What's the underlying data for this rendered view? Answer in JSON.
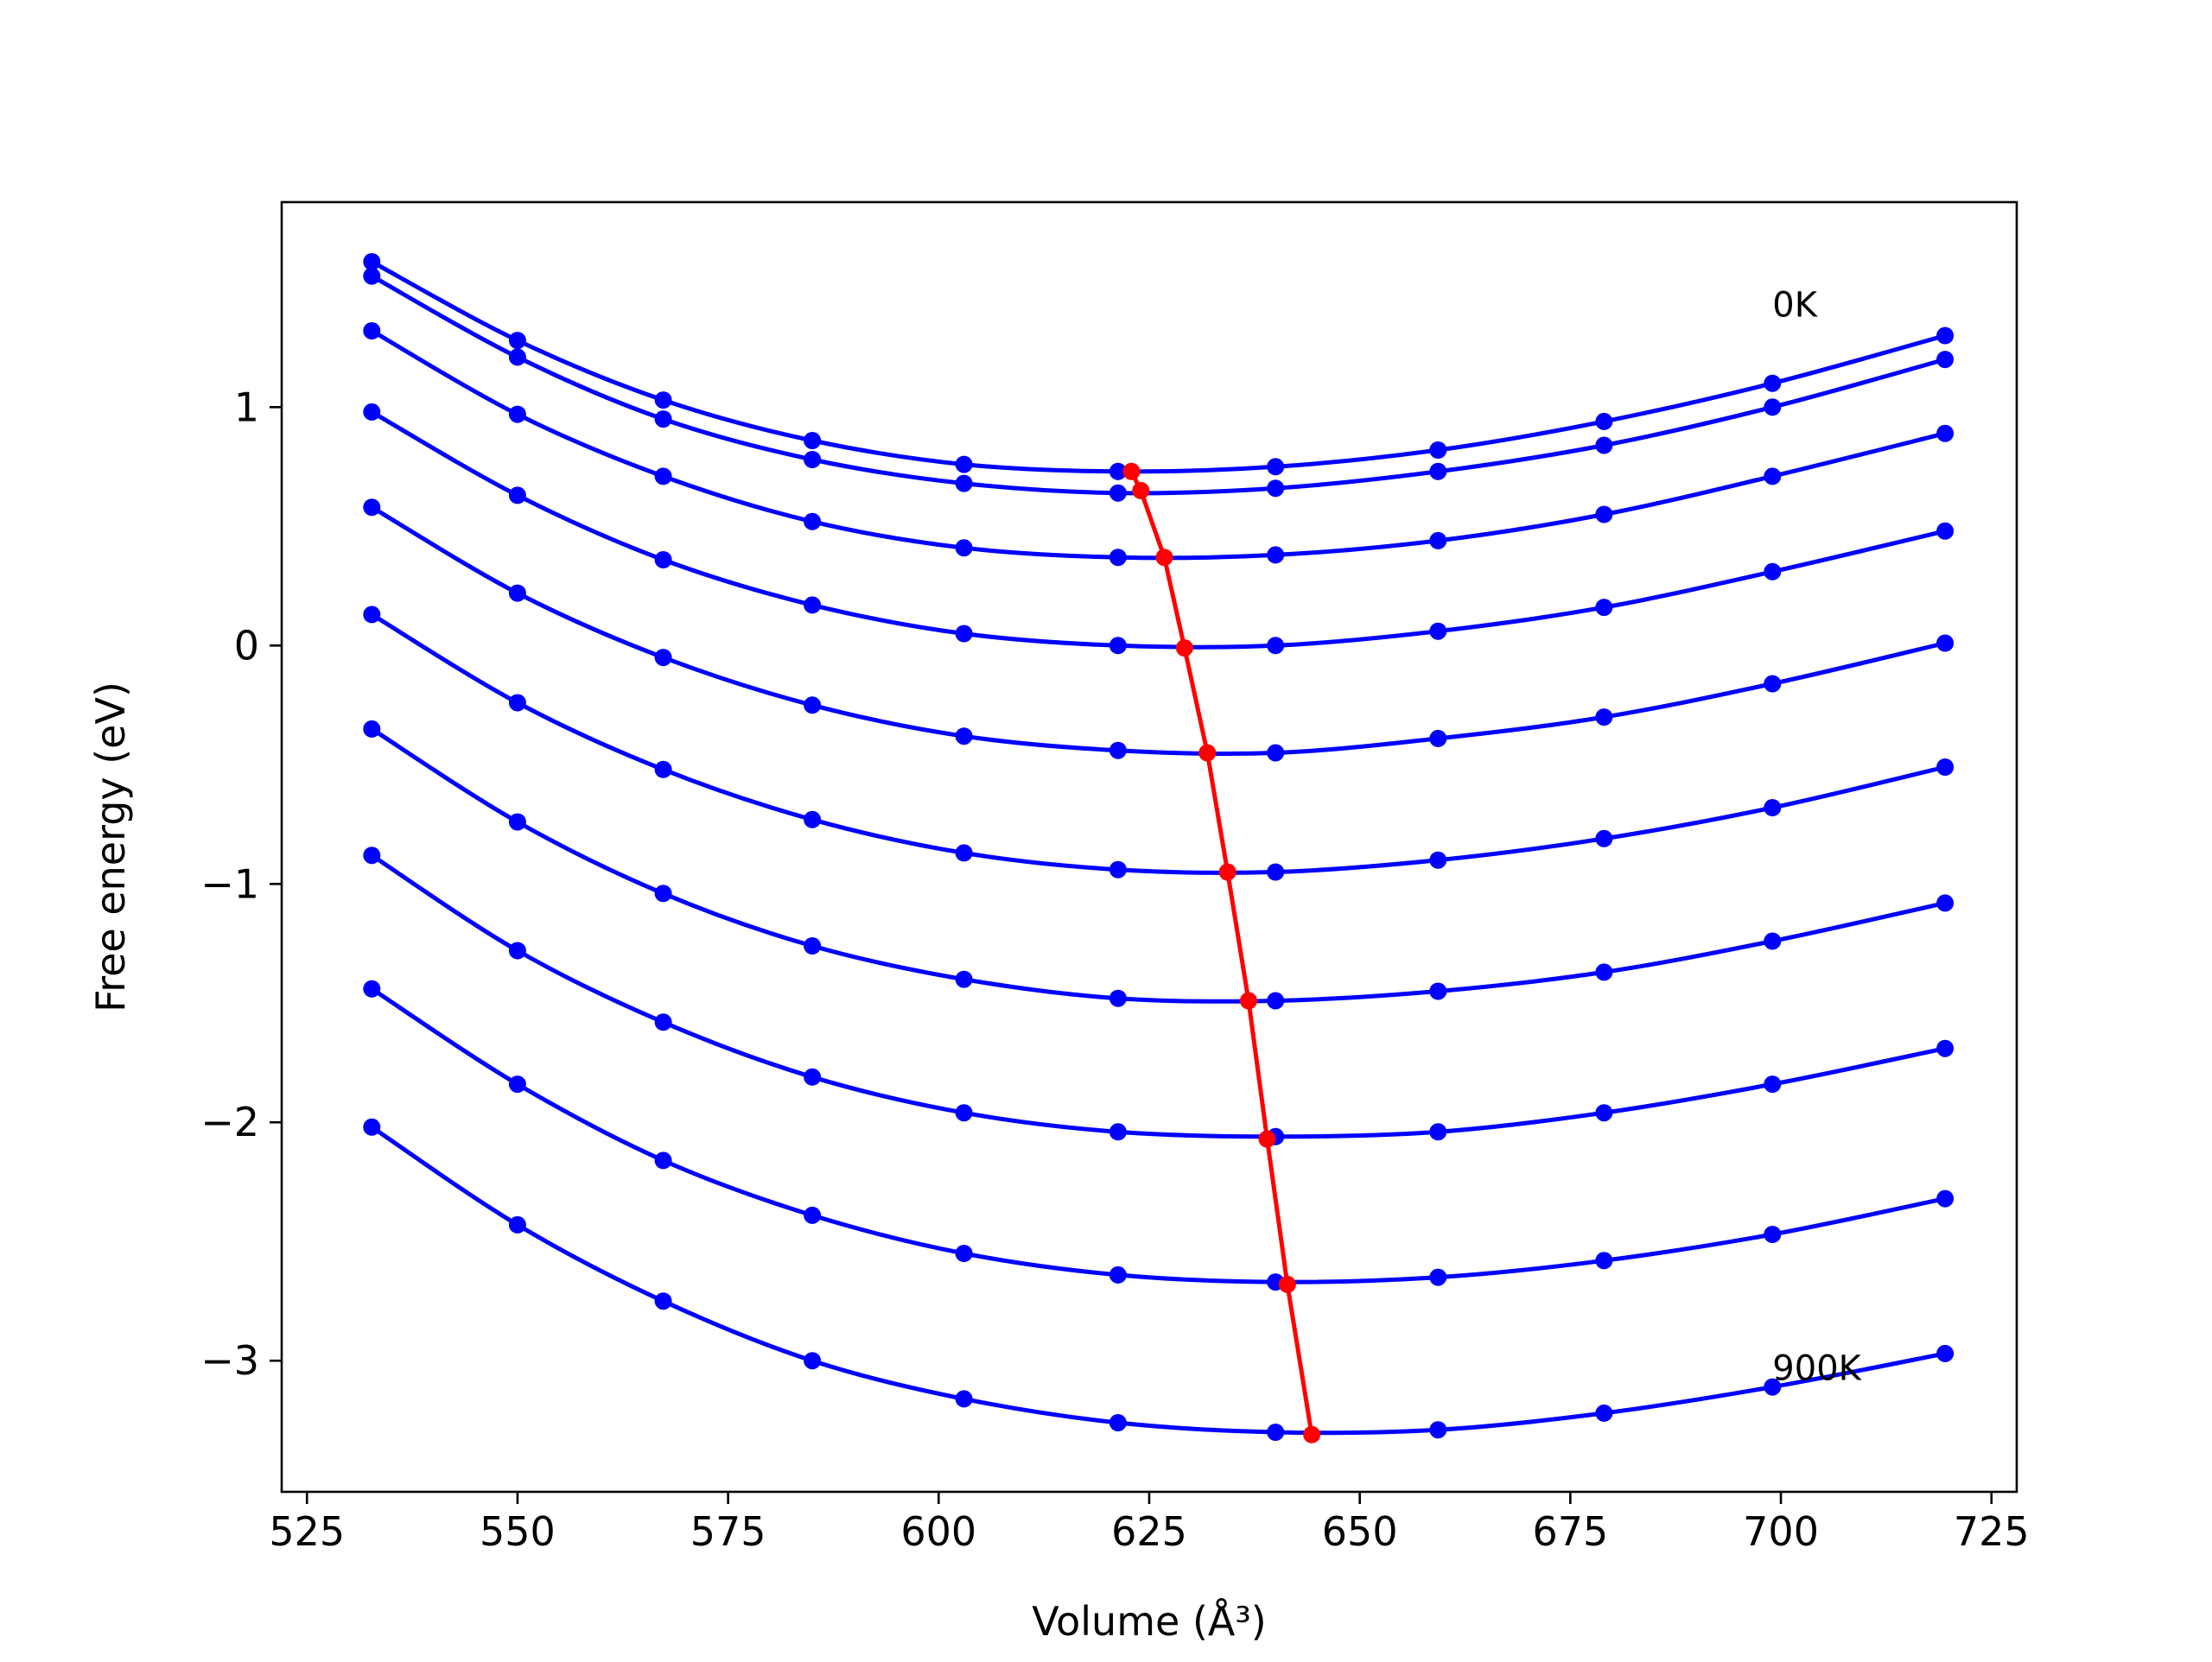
{
  "chart_data": {
    "type": "line",
    "xlabel": "Volume (Å³)",
    "ylabel": "Free energy (eV)",
    "xlim": [
      522,
      728
    ],
    "ylim": [
      -3.55,
      1.86
    ],
    "xticks": [
      525,
      550,
      575,
      600,
      625,
      650,
      675,
      700,
      725
    ],
    "yticks": [
      -3,
      -2,
      -1,
      0,
      1
    ],
    "ytick_labels": [
      "−3",
      "−2",
      "−1",
      "0",
      "1"
    ],
    "annotations": [
      {
        "text": "0K",
        "x": 699,
        "y": 1.38
      },
      {
        "text": "900K",
        "x": 699,
        "y": -3.08
      }
    ],
    "colors": {
      "isotherm": "#0000ff",
      "minimum_path": "#ff0000"
    },
    "x": [
      532.7,
      550.0,
      567.3,
      585.0,
      603.0,
      621.3,
      640.0,
      659.3,
      679.0,
      699.0,
      719.5
    ],
    "series": [
      {
        "values": [
          1.61,
          1.28,
          1.03,
          0.86,
          0.76,
          0.73,
          0.75,
          0.82,
          0.94,
          1.1,
          1.3
        ]
      },
      {
        "values": [
          1.55,
          1.21,
          0.95,
          0.78,
          0.68,
          0.64,
          0.66,
          0.73,
          0.84,
          1.0,
          1.2
        ]
      },
      {
        "values": [
          1.32,
          0.97,
          0.71,
          0.52,
          0.41,
          0.37,
          0.38,
          0.44,
          0.55,
          0.71,
          0.89
        ]
      },
      {
        "values": [
          0.98,
          0.63,
          0.36,
          0.17,
          0.05,
          0.0,
          0.0,
          0.06,
          0.16,
          0.31,
          0.48
        ]
      },
      {
        "values": [
          0.58,
          0.22,
          -0.05,
          -0.25,
          -0.38,
          -0.44,
          -0.45,
          -0.39,
          -0.3,
          -0.16,
          0.01
        ]
      },
      {
        "values": [
          0.13,
          -0.24,
          -0.52,
          -0.73,
          -0.87,
          -0.94,
          -0.95,
          -0.9,
          -0.81,
          -0.68,
          -0.51
        ]
      },
      {
        "values": [
          -0.35,
          -0.74,
          -1.04,
          -1.26,
          -1.4,
          -1.48,
          -1.49,
          -1.45,
          -1.37,
          -1.24,
          -1.08
        ]
      },
      {
        "values": [
          -0.88,
          -1.28,
          -1.58,
          -1.81,
          -1.96,
          -2.04,
          -2.06,
          -2.04,
          -1.96,
          -1.84,
          -1.69
        ]
      },
      {
        "values": [
          -1.44,
          -1.84,
          -2.16,
          -2.39,
          -2.55,
          -2.64,
          -2.67,
          -2.65,
          -2.58,
          -2.47,
          -2.32
        ]
      },
      {
        "values": [
          -2.02,
          -2.43,
          -2.75,
          -3.0,
          -3.16,
          -3.26,
          -3.3,
          -3.29,
          -3.22,
          -3.11,
          -2.97
        ]
      }
    ],
    "minimum_path": {
      "x": [
        622.9,
        624.0,
        626.8,
        629.2,
        631.9,
        634.3,
        636.8,
        639.0,
        641.4,
        644.3
      ],
      "y": [
        0.73,
        0.65,
        0.37,
        -0.01,
        -0.45,
        -0.95,
        -1.49,
        -2.07,
        -2.68,
        -3.31
      ]
    }
  }
}
